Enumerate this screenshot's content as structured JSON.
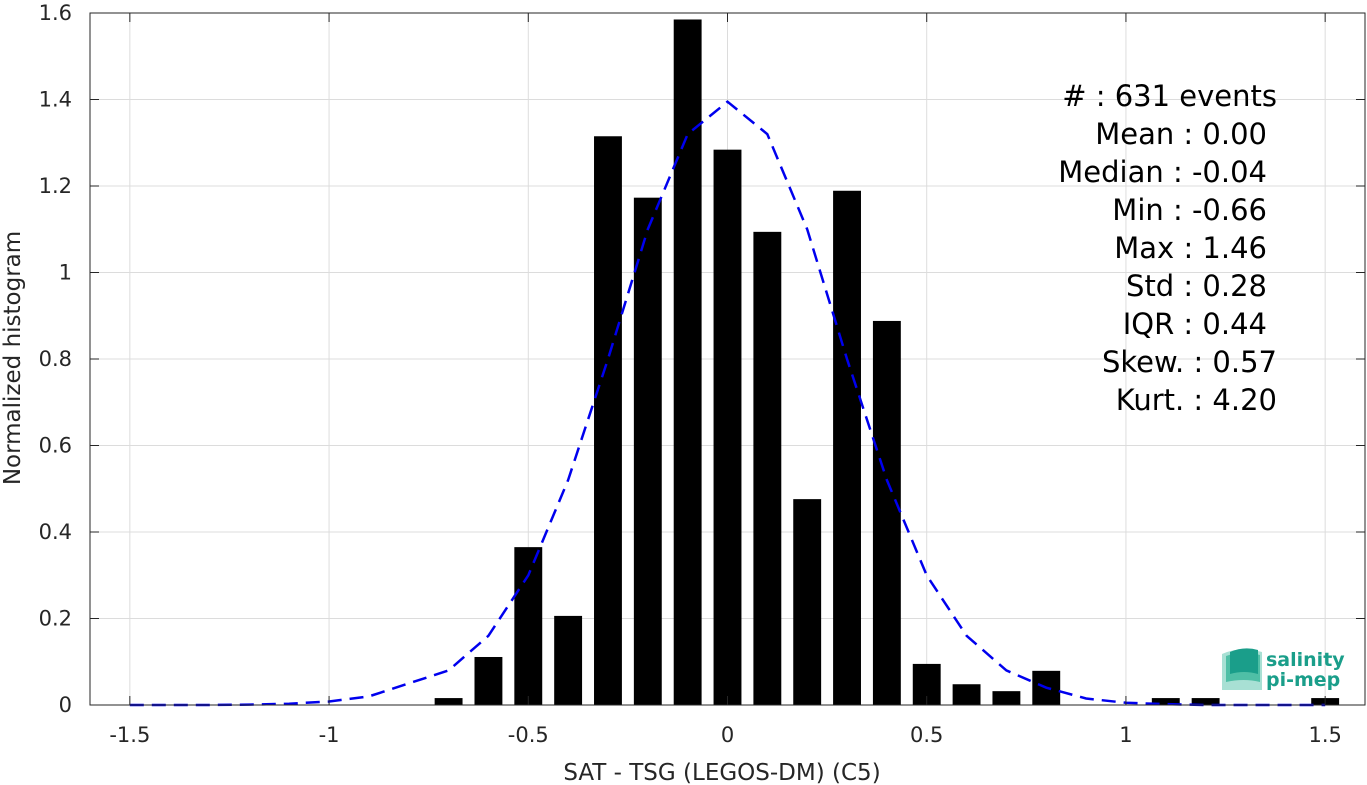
{
  "chart_data": {
    "type": "bar",
    "xlabel": "SAT - TSG (LEGOS-DM) (C5)",
    "ylabel": "Normalized histogram",
    "xlim": [
      -1.6,
      1.6
    ],
    "ylim": [
      0,
      1.6
    ],
    "xticks": [
      -1.5,
      -1,
      -0.5,
      0,
      0.5,
      1,
      1.5
    ],
    "xtick_labels": [
      "-1.5",
      "-1",
      "-0.5",
      "0",
      "0.5",
      "1",
      "1.5"
    ],
    "yticks": [
      0,
      0.2,
      0.4,
      0.6,
      0.8,
      1,
      1.2,
      1.4,
      1.6
    ],
    "ytick_labels": [
      "0",
      "0.2",
      "0.4",
      "0.6",
      "0.8",
      "1",
      "1.2",
      "1.4",
      "1.6"
    ],
    "grid": true,
    "bar_color": "#000000",
    "bars": {
      "x": [
        -0.7,
        -0.6,
        -0.5,
        -0.4,
        -0.3,
        -0.2,
        -0.1,
        0.0,
        0.1,
        0.2,
        0.3,
        0.4,
        0.5,
        0.6,
        0.7,
        0.8,
        1.1,
        1.2,
        1.5
      ],
      "values": [
        0.016,
        0.111,
        0.365,
        0.206,
        1.315,
        1.173,
        1.585,
        1.284,
        1.094,
        0.476,
        1.189,
        0.888,
        0.095,
        0.048,
        0.032,
        0.079,
        0.016,
        0.016,
        0.016
      ]
    },
    "fit": {
      "color": "#0000ee",
      "style": "dashed",
      "x": [
        -1.5,
        -1.4,
        -1.3,
        -1.2,
        -1.1,
        -1.0,
        -0.9,
        -0.8,
        -0.7,
        -0.6,
        -0.5,
        -0.4,
        -0.3,
        -0.2,
        -0.1,
        0.0,
        0.1,
        0.2,
        0.3,
        0.4,
        0.5,
        0.6,
        0.7,
        0.8,
        0.9,
        1.0,
        1.1,
        1.2,
        1.3,
        1.4,
        1.5
      ],
      "y": [
        0.0,
        0.0,
        0.0,
        0.001,
        0.003,
        0.008,
        0.02,
        0.05,
        0.08,
        0.16,
        0.3,
        0.52,
        0.8,
        1.1,
        1.32,
        1.395,
        1.32,
        1.1,
        0.8,
        0.52,
        0.3,
        0.16,
        0.08,
        0.04,
        0.015,
        0.005,
        0.002,
        0.0,
        0.0,
        0.0,
        0.0
      ]
    }
  },
  "stats": [
    "#  : 631 events",
    "Mean : 0.00",
    "Median : -0.04",
    "Min : -0.66",
    "Max : 1.46",
    "Std : 0.28",
    "IQR : 0.44",
    "Skew. : 0.57",
    "Kurt. : 4.20"
  ],
  "logo": {
    "line1": "salinity",
    "line2": "pi-mep",
    "color": "#1a9e8a"
  }
}
